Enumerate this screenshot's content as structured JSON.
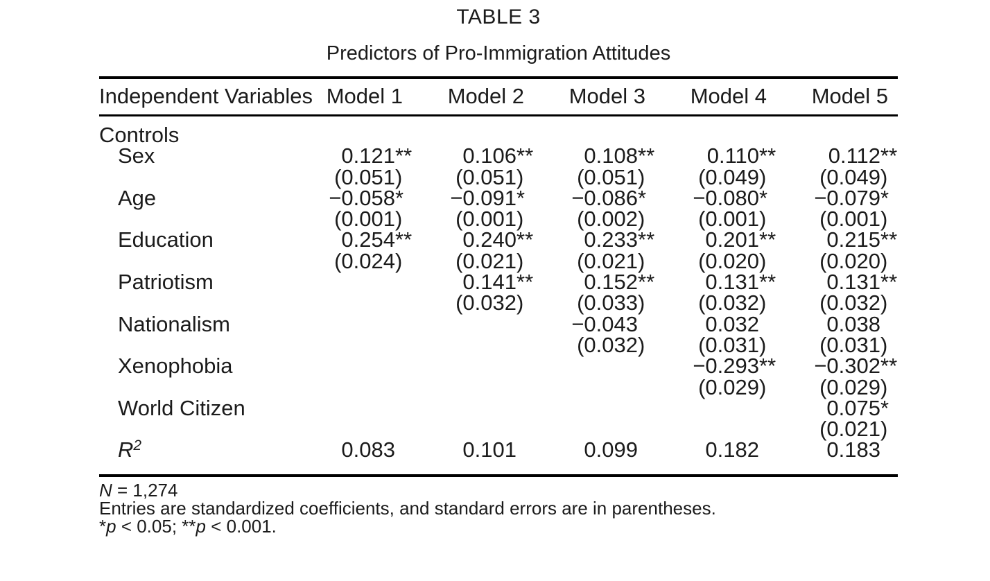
{
  "table": {
    "title": "TABLE 3",
    "subtitle": "Predictors of Pro-Immigration Attitudes",
    "columns": [
      "Independent Variables",
      "Model 1",
      "Model 2",
      "Model 3",
      "Model 4",
      "Model 5"
    ],
    "rows": [
      {
        "type": "section",
        "label": "Controls"
      },
      {
        "label": "Sex",
        "coef": [
          "0.121**",
          "0.106**",
          "0.108**",
          "0.110**",
          "0.112**"
        ],
        "se": [
          "(0.051)",
          "(0.051)",
          "(0.051)",
          "(0.049)",
          "(0.049)"
        ]
      },
      {
        "label": "Age",
        "coef": [
          "−0.058*",
          "−0.091*",
          "−0.086*",
          "−0.080*",
          "−0.079*"
        ],
        "se": [
          "(0.001)",
          "(0.001)",
          "(0.002)",
          "(0.001)",
          "(0.001)"
        ]
      },
      {
        "label": "Education",
        "coef": [
          "0.254**",
          "0.240**",
          "0.233**",
          "0.201**",
          "0.215**"
        ],
        "se": [
          "(0.024)",
          "(0.021)",
          "(0.021)",
          "(0.020)",
          "(0.020)"
        ]
      },
      {
        "label": "Patriotism",
        "coef": [
          "",
          "0.141**",
          "0.152**",
          "0.131**",
          "0.131**"
        ],
        "se": [
          "",
          "(0.032)",
          "(0.033)",
          "(0.032)",
          "(0.032)"
        ]
      },
      {
        "label": "Nationalism",
        "coef": [
          "",
          "",
          "−0.043",
          "0.032",
          "0.038"
        ],
        "se": [
          "",
          "",
          "(0.032)",
          "(0.031)",
          "(0.031)"
        ]
      },
      {
        "label": "Xenophobia",
        "coef": [
          "",
          "",
          "",
          "−0.293**",
          "−0.302**"
        ],
        "se": [
          "",
          "",
          "",
          "(0.029)",
          "(0.029)"
        ]
      },
      {
        "label": "World Citizen",
        "coef": [
          "",
          "",
          "",
          "",
          "0.075*"
        ],
        "se": [
          "",
          "",
          "",
          "",
          "(0.021)"
        ]
      },
      {
        "label": "R",
        "label_sup": "2",
        "italic": true,
        "coef": [
          "0.083",
          "0.101",
          "0.099",
          "0.182",
          "0.183"
        ]
      }
    ],
    "notes": [
      {
        "segments": [
          {
            "text": "N",
            "italic": true
          },
          {
            "text": " = 1,274",
            "italic": false
          }
        ]
      },
      {
        "segments": [
          {
            "text": "Entries are standardized coefficients, and standard errors are in parentheses.",
            "italic": false
          }
        ]
      },
      {
        "segments": [
          {
            "text": "*",
            "italic": false
          },
          {
            "text": "p",
            "italic": true
          },
          {
            "text": " < 0.05; **",
            "italic": false
          },
          {
            "text": "p",
            "italic": true
          },
          {
            "text": " < 0.001.",
            "italic": false
          }
        ]
      }
    ]
  },
  "colors": {
    "text": "#1b1b1b",
    "rule": "#000000",
    "background": "#ffffff"
  }
}
